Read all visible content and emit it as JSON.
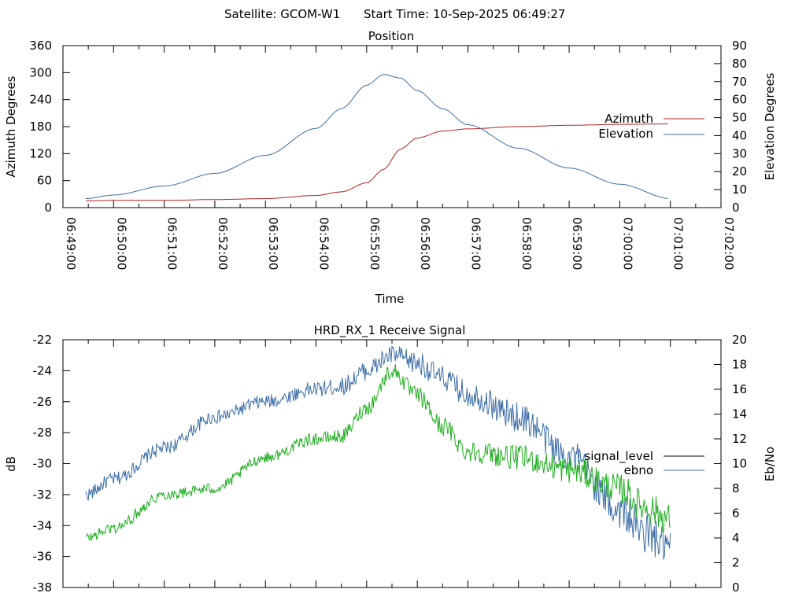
{
  "header": {
    "satellite_label": "Satellite: GCOM-W1",
    "start_time_label": "Start Time: 10-Sep-2025 06:49:27"
  },
  "colors": {
    "azimuth": "#b22222",
    "elevation": "#3d6fa8",
    "signal_level": "#000000",
    "ebno_legend": "#3d6fa8",
    "signal_plot_blue": "#3d6fa8",
    "signal_plot_green": "#1fae1f"
  },
  "chart_data": [
    {
      "type": "line",
      "title": "Position",
      "xlabel": "Time",
      "ylabel": "Azimuth Degrees",
      "y2label": "Elevation Degrees",
      "xlim": [
        "06:49:00",
        "07:02:00"
      ],
      "ylim": [
        0,
        360
      ],
      "y2lim": [
        0,
        90
      ],
      "x_ticks": [
        "06:49:00",
        "06:50:00",
        "06:51:00",
        "06:52:00",
        "06:53:00",
        "06:54:00",
        "06:55:00",
        "06:56:00",
        "06:57:00",
        "06:58:00",
        "06:59:00",
        "07:00:00",
        "07:01:00",
        "07:02:00"
      ],
      "y_ticks": [
        "0",
        "60",
        "120",
        "180",
        "240",
        "300",
        "360"
      ],
      "y2_ticks": [
        "0",
        "10",
        "20",
        "30",
        "40",
        "50",
        "60",
        "70",
        "80",
        "90"
      ],
      "legend": {
        "position": "right",
        "entries": [
          "Azimuth",
          "Elevation"
        ]
      },
      "series": [
        {
          "name": "Azimuth",
          "axis": "y",
          "x": [
            "06:49:27",
            "06:50:00",
            "06:51:00",
            "06:52:00",
            "06:53:00",
            "06:54:00",
            "06:54:30",
            "06:55:00",
            "06:55:20",
            "06:55:40",
            "06:56:00",
            "06:56:30",
            "06:57:00",
            "06:58:00",
            "06:59:00",
            "07:00:00",
            "07:01:00"
          ],
          "values": [
            15,
            16,
            16,
            18,
            20,
            27,
            35,
            55,
            85,
            130,
            155,
            170,
            175,
            180,
            183,
            185,
            186
          ]
        },
        {
          "name": "Elevation",
          "axis": "y2",
          "x": [
            "06:49:27",
            "06:50:00",
            "06:51:00",
            "06:52:00",
            "06:53:00",
            "06:54:00",
            "06:54:30",
            "06:55:00",
            "06:55:20",
            "06:55:40",
            "06:56:00",
            "06:56:30",
            "06:57:00",
            "06:58:00",
            "06:59:00",
            "07:00:00",
            "07:01:00"
          ],
          "values": [
            5,
            7,
            12,
            19,
            29,
            44,
            55,
            68,
            74,
            72,
            65,
            55,
            46,
            33,
            22,
            13,
            5
          ]
        }
      ]
    },
    {
      "type": "line",
      "title": "HRD_RX_1 Receive Signal",
      "ylabel": "dB",
      "y2label": "Eb/No",
      "xlim": [
        "06:49:00",
        "07:02:00"
      ],
      "ylim": [
        -38,
        -22
      ],
      "y2lim": [
        0,
        20
      ],
      "y_ticks": [
        "-38",
        "-36",
        "-34",
        "-32",
        "-30",
        "-28",
        "-26",
        "-24",
        "-22"
      ],
      "y2_ticks": [
        "0",
        "2",
        "4",
        "6",
        "8",
        "10",
        "12",
        "14",
        "16",
        "18",
        "20"
      ],
      "legend": {
        "position": "right",
        "entries": [
          "signal_level",
          "ebno"
        ]
      },
      "series": [
        {
          "name": "signal_level",
          "axis": "y",
          "x": [
            "06:49:27",
            "06:50:00",
            "06:51:00",
            "06:52:00",
            "06:53:00",
            "06:54:00",
            "06:54:30",
            "06:55:00",
            "06:55:30",
            "06:56:00",
            "06:56:30",
            "06:57:00",
            "06:58:00",
            "06:59:00",
            "07:00:00",
            "07:00:30",
            "07:01:00"
          ],
          "values": [
            -32.0,
            -31.0,
            -29.0,
            -27.0,
            -26.0,
            -25.2,
            -25.0,
            -24.0,
            -23.0,
            -23.5,
            -24.5,
            -25.5,
            -27.0,
            -29.5,
            -33.0,
            -34.5,
            -35.5
          ]
        },
        {
          "name": "ebno",
          "axis": "y2",
          "x": [
            "06:49:27",
            "06:50:00",
            "06:51:00",
            "06:52:00",
            "06:53:00",
            "06:54:00",
            "06:54:30",
            "06:55:00",
            "06:55:30",
            "06:56:00",
            "06:56:30",
            "06:57:00",
            "06:58:00",
            "06:59:00",
            "07:00:00",
            "07:00:30",
            "07:01:00"
          ],
          "values": [
            4.0,
            4.8,
            7.5,
            8.0,
            10.5,
            12.0,
            12.2,
            14.5,
            17.5,
            15.5,
            13.0,
            11.0,
            10.5,
            9.5,
            8.0,
            6.5,
            5.5
          ]
        }
      ]
    }
  ]
}
